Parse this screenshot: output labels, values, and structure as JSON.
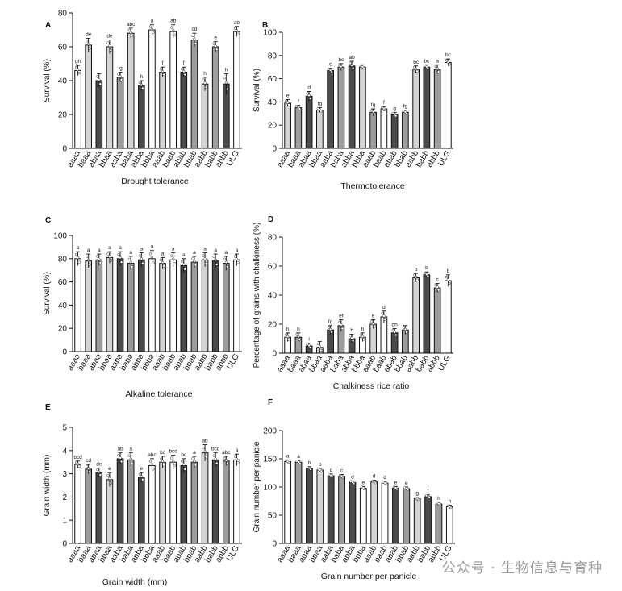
{
  "watermark": "公众号 · 生物信息与育种",
  "chart_data": [
    {
      "panel": "A",
      "type": "bar",
      "ylabel": "Survival (%)",
      "xlabel": "Drought tolerance",
      "ylim": [
        0,
        80
      ],
      "yticks": [
        0,
        20,
        40,
        60,
        80
      ],
      "categories": [
        "aaaa",
        "baaa",
        "abaa",
        "bbaa",
        "aaba",
        "baba",
        "abba",
        "bbba",
        "aaab",
        "baab",
        "abab",
        "bbab",
        "aabb",
        "babb",
        "abbb",
        "ULG"
      ],
      "values": [
        46,
        61,
        40,
        60,
        42,
        68,
        37,
        70,
        45,
        69,
        45,
        64,
        38,
        60,
        38,
        69
      ],
      "errors": [
        3,
        4,
        4,
        4,
        3,
        3,
        3,
        3,
        3,
        4,
        3,
        4,
        4,
        3,
        6,
        3
      ],
      "letters": [
        "gh",
        "de",
        "",
        "de",
        "fg",
        "abc",
        "h",
        "a",
        "f",
        "ab",
        "f",
        "cd",
        "h",
        "e",
        "h",
        "ab"
      ],
      "fills": [
        "w",
        "l",
        "d",
        "l",
        "m",
        "l",
        "d",
        "w",
        "l",
        "w",
        "d",
        "m",
        "l",
        "m",
        "d",
        "w"
      ]
    },
    {
      "panel": "B",
      "type": "bar",
      "ylabel": "Survival (%)",
      "xlabel": "Thermotolerance",
      "ylim": [
        0,
        100
      ],
      "yticks": [
        0,
        20,
        40,
        60,
        80,
        100
      ],
      "categories": [
        "aaaa",
        "baaa",
        "abaa",
        "bbaa",
        "aaba",
        "baba",
        "abba",
        "bbba",
        "aaab",
        "baab",
        "abab",
        "bbab",
        "aabb",
        "babb",
        "abbb",
        "ULG"
      ],
      "values": [
        39,
        35,
        45,
        33,
        67,
        70,
        71,
        70,
        31,
        34,
        29,
        31,
        68,
        70,
        68,
        74
      ],
      "errors": [
        3,
        2,
        4,
        2,
        2,
        3,
        4,
        2,
        3,
        2,
        2,
        2,
        3,
        2,
        4,
        3
      ],
      "letters": [
        "e",
        "f",
        "d",
        "fg",
        "c",
        "bc",
        "ab",
        "",
        "fg",
        "f",
        "g",
        "fg",
        "bc",
        "bc",
        "a",
        "bc"
      ],
      "fills": [
        "l",
        "m",
        "d",
        "l",
        "d",
        "m",
        "d",
        "l",
        "m",
        "w",
        "d",
        "m",
        "l",
        "d",
        "m",
        "w"
      ]
    },
    {
      "panel": "C",
      "type": "bar",
      "ylabel": "Survival (%)",
      "xlabel": "Alkaline tolerance",
      "ylim": [
        0,
        100
      ],
      "yticks": [
        0,
        20,
        40,
        60,
        80,
        100
      ],
      "categories": [
        "aaaa",
        "baaa",
        "abaa",
        "bbaa",
        "aaba",
        "baba",
        "abba",
        "bbba",
        "aaab",
        "baab",
        "abab",
        "bbab",
        "aabb",
        "babb",
        "abbb",
        "ULG"
      ],
      "values": [
        80,
        78,
        79,
        81,
        80,
        76,
        79,
        80,
        76,
        79,
        74,
        77,
        79,
        78,
        76,
        79
      ],
      "errors": [
        6,
        6,
        5,
        5,
        6,
        6,
        6,
        7,
        5,
        6,
        6,
        5,
        6,
        6,
        6,
        5
      ],
      "letters": [
        "a",
        "a",
        "a",
        "a",
        "a",
        "a",
        "a",
        "a",
        "a",
        "a",
        "a",
        "a",
        "a",
        "a",
        "a",
        "a"
      ],
      "fills": [
        "w",
        "l",
        "m",
        "l",
        "d",
        "m",
        "d",
        "w",
        "l",
        "w",
        "d",
        "m",
        "l",
        "d",
        "m",
        "w"
      ]
    },
    {
      "panel": "D",
      "type": "bar",
      "ylabel": "Percentage of grains with chalkiness (%)",
      "xlabel": "Chalkiness rice ratio",
      "ylim": [
        0,
        80
      ],
      "yticks": [
        0,
        20,
        40,
        60,
        80
      ],
      "categories": [
        "aaaa",
        "baaa",
        "abaa",
        "bbaa",
        "aaba",
        "baba",
        "abba",
        "bbba",
        "aaab",
        "baab",
        "abab",
        "bbab",
        "aabb",
        "babb",
        "abbb",
        "ULG"
      ],
      "values": [
        11,
        11,
        5,
        4,
        16,
        19,
        10,
        11,
        20,
        25,
        14,
        16,
        52,
        54,
        45,
        50
      ],
      "errors": [
        3,
        3,
        2,
        4,
        3,
        4,
        3,
        3,
        3,
        4,
        3,
        3,
        3,
        2,
        3,
        4
      ],
      "letters": [
        "h",
        "h",
        "i",
        "",
        "fg",
        "ef",
        "h",
        "h",
        "e",
        "d",
        "gh",
        "",
        "b",
        "b",
        "c",
        "b"
      ],
      "fills": [
        "w",
        "m",
        "d",
        "l",
        "d",
        "m",
        "d",
        "w",
        "l",
        "w",
        "d",
        "m",
        "l",
        "d",
        "m",
        "w"
      ]
    },
    {
      "panel": "E",
      "type": "bar",
      "ylabel": "Grain width (mm)",
      "xlabel": "Grain width (mm)",
      "ylim": [
        0,
        5
      ],
      "yticks": [
        0,
        1,
        2,
        3,
        4,
        5
      ],
      "categories": [
        "aaaa",
        "baaa",
        "abaa",
        "bbaa",
        "aaba",
        "baba",
        "abba",
        "bbba",
        "aaab",
        "baab",
        "abab",
        "bbab",
        "aabb",
        "babb",
        "abbb",
        "ULG"
      ],
      "values": [
        3.4,
        3.2,
        3.05,
        2.75,
        3.65,
        3.6,
        2.85,
        3.35,
        3.5,
        3.5,
        3.35,
        3.5,
        3.9,
        3.6,
        3.55,
        3.6
      ],
      "errors": [
        0.15,
        0.2,
        0.2,
        0.3,
        0.25,
        0.3,
        0.2,
        0.3,
        0.25,
        0.3,
        0.3,
        0.25,
        0.35,
        0.3,
        0.2,
        0.25
      ],
      "letters": [
        "bcd",
        "cd",
        "de",
        "e",
        "ab",
        "a",
        "e",
        "abc",
        "bc",
        "bcd",
        "bc",
        "a",
        "ab",
        "bcd",
        "abc",
        "a"
      ],
      "fills": [
        "w",
        "m",
        "d",
        "l",
        "d",
        "m",
        "d",
        "w",
        "l",
        "w",
        "d",
        "m",
        "l",
        "d",
        "m",
        "w"
      ]
    },
    {
      "panel": "F",
      "type": "bar",
      "ylabel": "Grain number per panicle",
      "xlabel": "Grain number per panicle",
      "ylim": [
        0,
        200
      ],
      "yticks": [
        0,
        50,
        100,
        150,
        200
      ],
      "categories": [
        "aaaa",
        "baaa",
        "abaa",
        "bbaa",
        "aaba",
        "baba",
        "abba",
        "bbba",
        "aaab",
        "baab",
        "abab",
        "bbab",
        "aabb",
        "babb",
        "abbb",
        "ULG"
      ],
      "values": [
        145,
        144,
        133,
        130,
        120,
        119,
        108,
        98,
        109,
        107,
        98,
        97,
        79,
        83,
        70,
        65
      ],
      "errors": [
        3,
        3,
        3,
        3,
        3,
        3,
        3,
        3,
        3,
        3,
        3,
        3,
        3,
        3,
        3,
        3
      ],
      "letters": [
        "a",
        "a",
        "b",
        "b",
        "c",
        "c",
        "d",
        "e",
        "d",
        "d",
        "e",
        "e",
        "g",
        "f",
        "h",
        "h"
      ],
      "fills": [
        "w",
        "m",
        "d",
        "l",
        "d",
        "m",
        "d",
        "w",
        "l",
        "w",
        "d",
        "m",
        "l",
        "d",
        "m",
        "w"
      ]
    }
  ]
}
